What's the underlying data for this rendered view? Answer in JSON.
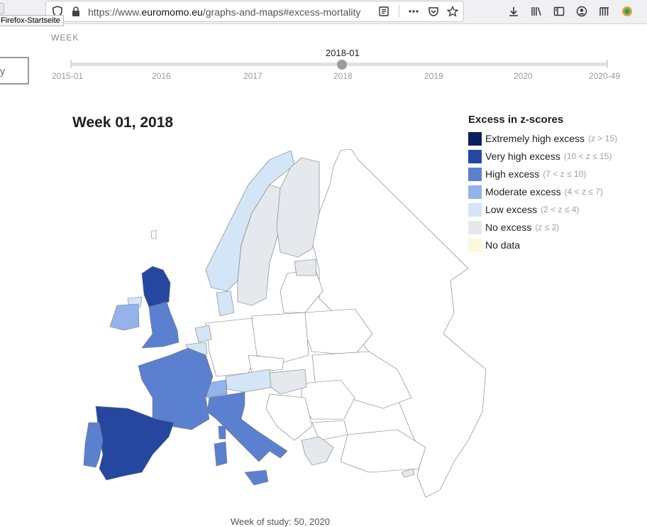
{
  "browser": {
    "tooltip": "Firefox-Startseite",
    "url_prefix": "https://www.",
    "url_domain": "euromomo.eu",
    "url_path": "/graphs-and-maps#excess-mortality"
  },
  "controls": {
    "week_label": "WEEK",
    "left_box_text": "y",
    "slider_value": "2018-01",
    "slider_ticks": [
      "2015-01",
      "2016",
      "2017",
      "2018",
      "2019",
      "2020",
      "2020-49"
    ],
    "slider_position_fraction": 0.5
  },
  "map": {
    "title": "Week 01, 2018",
    "footer": "Week of study: 50, 2020"
  },
  "legend": {
    "title": "Excess in z-scores",
    "items": [
      {
        "label": "Extremely high excess",
        "range": "(z > 15)",
        "color": "#0d1f5c"
      },
      {
        "label": "Very high excess",
        "range": "(10 < z ≤ 15)",
        "color": "#2547a0"
      },
      {
        "label": "High excess",
        "range": "(7 < z ≤ 10)",
        "color": "#5b80cf"
      },
      {
        "label": "Moderate excess",
        "range": "(4 < z ≤ 7)",
        "color": "#93b3ea"
      },
      {
        "label": "Low excess",
        "range": "(2 < z ≤ 4)",
        "color": "#d3e5f7"
      },
      {
        "label": "No excess",
        "range": "(z ≤ 2)",
        "color": "#e5e8ec"
      },
      {
        "label": "No data",
        "range": "",
        "color": "#fdf8de"
      }
    ]
  }
}
